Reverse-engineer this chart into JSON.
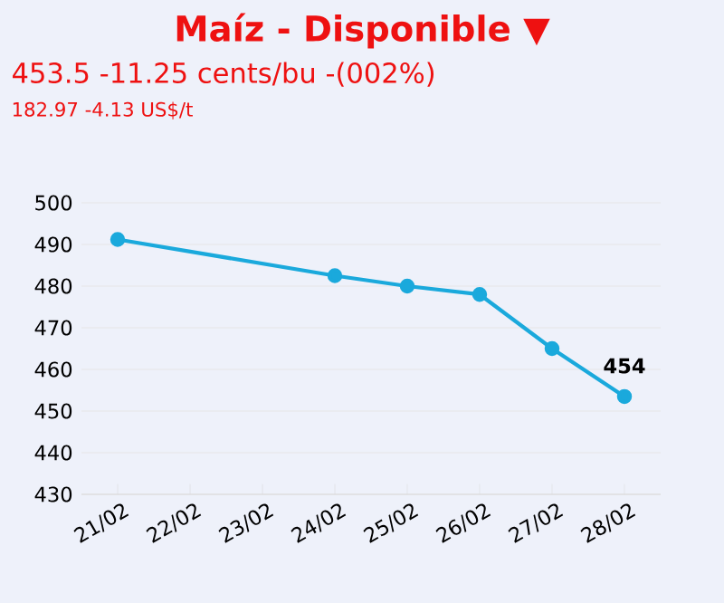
{
  "chart_data": {
    "type": "line",
    "title": "Maíz - Disponible ▼",
    "subtitle": "453.5 -11.25 cents/bu -(002%)",
    "annotations": [
      "182.97 -4.13 US$/t"
    ],
    "categories": [
      "21/02",
      "22/02",
      "23/02",
      "24/02",
      "25/02",
      "26/02",
      "27/02",
      "28/02"
    ],
    "series": [
      {
        "color": "#1aa9dc",
        "values": [
          491.2,
          null,
          null,
          482.5,
          480,
          478,
          465,
          453.5
        ],
        "value_labels": [
          null,
          null,
          null,
          null,
          null,
          null,
          null,
          "454"
        ]
      }
    ],
    "ylim": [
      430,
      500
    ],
    "yticks": [
      430,
      440,
      450,
      460,
      470,
      480,
      490,
      500
    ],
    "grid": "y",
    "marker": "circle",
    "line_style": "solid"
  }
}
